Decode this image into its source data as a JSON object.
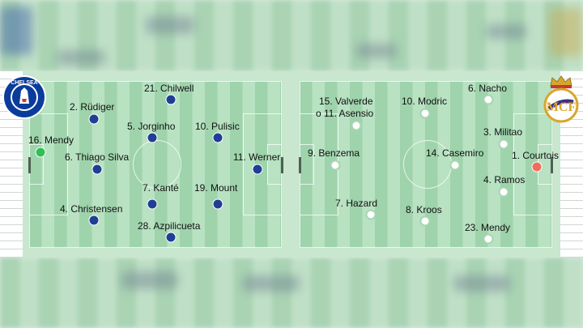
{
  "colors": {
    "chelsea_dot": "#1f3f95",
    "chelsea_gk_dot": "#2fbf55",
    "madrid_dot": "#ffffff",
    "madrid_gk_dot": "#f26b5b",
    "pitch_stripe_a": "#9fd3ac",
    "pitch_stripe_b": "#b8e2c2"
  },
  "chelsea": {
    "crest_icon": "chelsea-crest-icon",
    "crest_text_top": "CHELSEA",
    "players": [
      {
        "label": "16. Mendy"
      },
      {
        "label": "2. Rüdiger"
      },
      {
        "label": "6. Thiago Silva"
      },
      {
        "label": "4. Christensen"
      },
      {
        "label": "21. Chilwell"
      },
      {
        "label": "5. Jorginho"
      },
      {
        "label": "7. Kanté"
      },
      {
        "label": "28. Azpilicueta"
      },
      {
        "label": "10. Pulisic"
      },
      {
        "label": "19. Mount"
      },
      {
        "label": "11. Werner"
      }
    ]
  },
  "madrid": {
    "crest_icon": "real-madrid-crest-icon",
    "players": [
      {
        "label": "1. Courtois"
      },
      {
        "label": "6. Nacho"
      },
      {
        "label": "3. Militao"
      },
      {
        "label": "4. Ramos"
      },
      {
        "label": "23. Mendy"
      },
      {
        "label": "10. Modric"
      },
      {
        "label": "14. Casemiro"
      },
      {
        "label": "8. Kroos"
      },
      {
        "label": "15. Valverde"
      },
      {
        "label": "o 11. Asensio"
      },
      {
        "label": "9. Benzema"
      },
      {
        "label": "7. Hazard"
      }
    ]
  }
}
